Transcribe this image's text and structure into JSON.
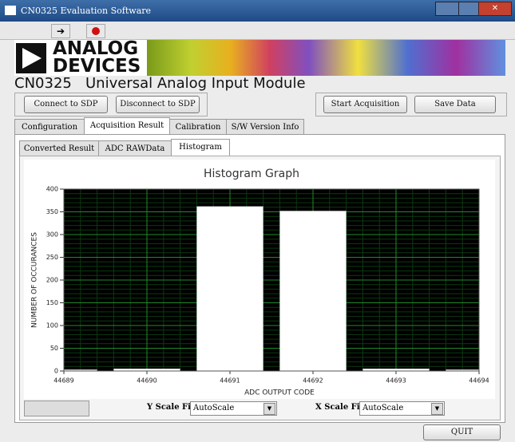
{
  "window": {
    "title": "CN0325 Evaluation Software"
  },
  "banner": {
    "logo_line1": "ANALOG",
    "logo_line2": "DEVICES"
  },
  "header": {
    "title": "CN0325   Universal Analog Input Module"
  },
  "buttons": [
    "Connect to SDP",
    "Disconnect to SDP",
    "Start Acquisition",
    "Save Data"
  ],
  "tabs": [
    "Configuration",
    "Acquisition Result",
    "Calibration",
    "S/W Version Info"
  ],
  "subtabs": [
    "Converted Result",
    "ADC RAWData",
    "Histogram"
  ],
  "controls": {
    "y_scale_label": "Y Scale Fit",
    "y_scale_value": "AutoScale",
    "x_scale_label": "X Scale Fit",
    "x_scale_value": "AutoScale"
  },
  "quit": "QUIT",
  "chart_data": {
    "type": "bar",
    "title": "Histogram Graph",
    "x_label": "ADC OUTPUT CODE",
    "y_label": "NUMBER OF OCCURANCES",
    "x": [
      44689,
      44690,
      44691,
      44692,
      44693,
      44694
    ],
    "values": [
      3,
      5,
      362,
      352,
      5,
      3
    ],
    "color": "#ffffff",
    "xlim": [
      44689,
      44694
    ],
    "xticks": [
      44689,
      44690,
      44691,
      44692,
      44693,
      44694
    ],
    "ylim": [
      0,
      400
    ],
    "yticks": [
      0,
      50,
      100,
      150,
      200,
      250,
      300,
      350,
      400
    ],
    "grid": true
  }
}
